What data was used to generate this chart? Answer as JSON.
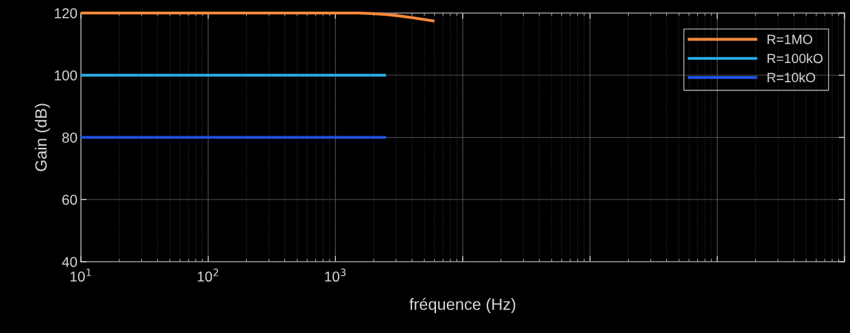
{
  "chart_data": {
    "type": "line",
    "xlabel": "fréquence (Hz)",
    "ylabel": "Gain (dB)",
    "log": "x",
    "xlim": [
      10,
      10000000
    ],
    "xticks": [
      {
        "value": 10,
        "label": "10$^{1}$"
      },
      {
        "value": 100,
        "label": "10$^{2}$"
      },
      {
        "value": 1000,
        "label": "10$^{3}$"
      },
      {
        "value": 10000,
        "label": null
      },
      {
        "value": 100000,
        "label": null
      },
      {
        "value": 1000000,
        "label": null
      },
      {
        "value": 10000000,
        "label": null
      }
    ],
    "ylim": [
      40,
      120
    ],
    "yticks": [
      40,
      60,
      80,
      100,
      120
    ],
    "grid": true,
    "legend": "top right",
    "line_style": "solid",
    "marker": "none",
    "series": [
      {
        "name": "R=1MO",
        "color": "#f7893a",
        "x": [
          10,
          100,
          1000,
          1500,
          2000,
          2500,
          3000,
          4000,
          5000,
          6000
        ],
        "values": [
          120,
          120,
          120,
          120,
          119.8,
          119.5,
          119.2,
          118.5,
          117.9,
          117.4
        ]
      },
      {
        "name": "R=100kO",
        "color": "#29aee6",
        "x": [
          10,
          2500
        ],
        "values": [
          100,
          100
        ]
      },
      {
        "name": "R=10kO",
        "color": "#1f52e0",
        "x": [
          10,
          2500
        ],
        "values": [
          80,
          80
        ]
      }
    ]
  }
}
